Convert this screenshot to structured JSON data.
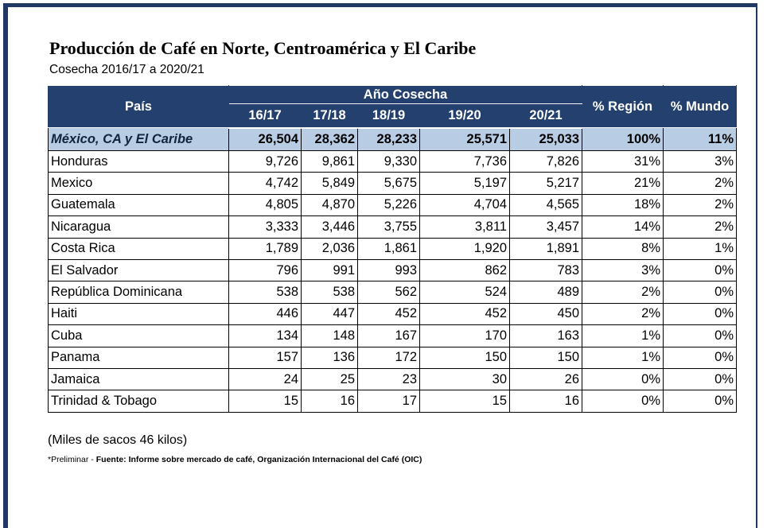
{
  "title": "Producción de Café en Norte, Centroamérica y El Caribe",
  "subtitle": "Cosecha 2016/17 a 2020/21",
  "table": {
    "header": {
      "country": "País",
      "harvest": "Año Cosecha",
      "years": [
        "16/17",
        "17/18",
        "18/19",
        "19/20",
        "20/21"
      ],
      "region": "% Región",
      "world": "% Mundo"
    },
    "total": [
      "México, CA y El Caribe",
      "26,504",
      "28,362",
      "28,233",
      "25,571",
      "25,033",
      "100%",
      "11%"
    ],
    "rows": [
      [
        "Honduras",
        "9,726",
        "9,861",
        "9,330",
        "7,736",
        "7,826",
        "31%",
        "3%"
      ],
      [
        "Mexico",
        "4,742",
        "5,849",
        "5,675",
        "5,197",
        "5,217",
        "21%",
        "2%"
      ],
      [
        "Guatemala",
        "4,805",
        "4,870",
        "5,226",
        "4,704",
        "4,565",
        "18%",
        "2%"
      ],
      [
        "Nicaragua",
        "3,333",
        "3,446",
        "3,755",
        "3,811",
        "3,457",
        "14%",
        "2%"
      ],
      [
        "Costa Rica",
        "1,789",
        "2,036",
        "1,861",
        "1,920",
        "1,891",
        "8%",
        "1%"
      ],
      [
        "El Salvador",
        "796",
        "991",
        "993",
        "862",
        "783",
        "3%",
        "0%"
      ],
      [
        "República Dominicana",
        "538",
        "538",
        "562",
        "524",
        "489",
        "2%",
        "0%"
      ],
      [
        "Haiti",
        "446",
        "447",
        "452",
        "452",
        "450",
        "2%",
        "0%"
      ],
      [
        "Cuba",
        "134",
        "148",
        "167",
        "170",
        "163",
        "1%",
        "0%"
      ],
      [
        "Panama",
        "157",
        "136",
        "172",
        "150",
        "150",
        "1%",
        "0%"
      ],
      [
        "Jamaica",
        "24",
        "25",
        "23",
        "30",
        "26",
        "0%",
        "0%"
      ],
      [
        "Trinidad & Tobago",
        "15",
        "16",
        "17",
        "15",
        "16",
        "0%",
        "0%"
      ]
    ]
  },
  "footnote": {
    "unit": "(Miles de sacos 46 kilos)",
    "preliminary": "*Preliminar -",
    "source": "Fuente: Informe sobre mercado de café, Organización Internacional del Café (OIC)"
  }
}
